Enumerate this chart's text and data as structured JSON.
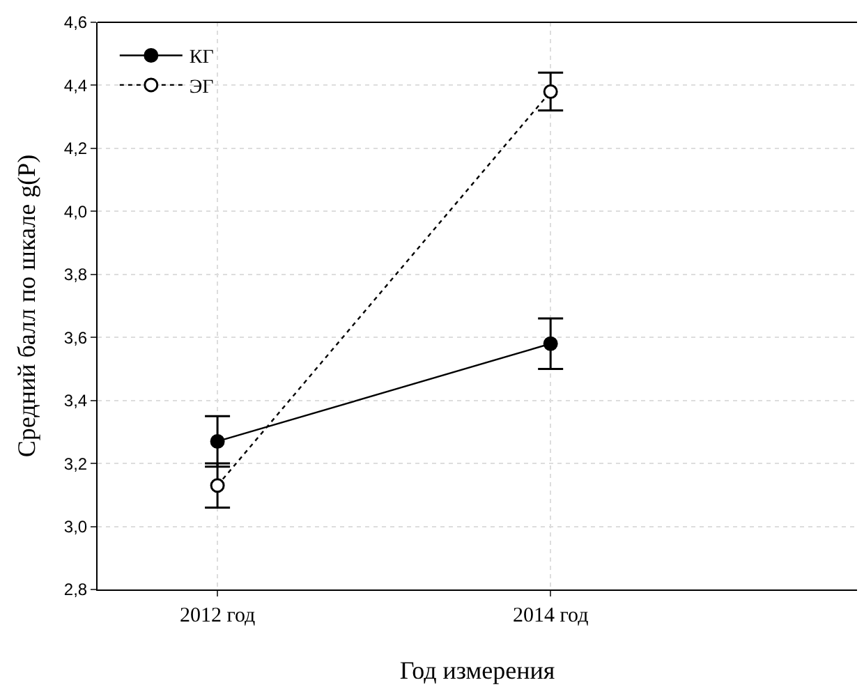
{
  "chart_data": {
    "type": "line",
    "xlabel": "Год измерения",
    "ylabel": "Средний балл по шкале g(P)",
    "categories": [
      "2012 год",
      "2014 год"
    ],
    "series": [
      {
        "name": "КГ",
        "color": "#000000",
        "values": [
          3.27,
          3.58
        ],
        "errors": [
          0.08,
          0.08
        ],
        "marker": "circle",
        "line_style": "solid"
      },
      {
        "name": "ЭГ",
        "color": "#000000",
        "values": [
          3.13,
          4.38
        ],
        "errors": [
          0.07,
          0.06
        ],
        "marker": "circle",
        "line_style": "dotted"
      }
    ],
    "ylim": [
      2.8,
      4.6
    ],
    "yticks": [
      {
        "value": 2.8,
        "label": "2,8"
      },
      {
        "value": 3.0,
        "label": "3,0"
      },
      {
        "value": 3.2,
        "label": "3,2"
      },
      {
        "value": 3.4,
        "label": "3,4"
      },
      {
        "value": 3.6,
        "label": "3,6"
      },
      {
        "value": 3.8,
        "label": "3,8"
      },
      {
        "value": 4.0,
        "label": "4,0"
      },
      {
        "value": 4.2,
        "label": "4,2"
      },
      {
        "value": 4.4,
        "label": "4,4"
      },
      {
        "value": 4.6,
        "label": "4,6"
      }
    ],
    "grid": true,
    "legend": "top left"
  }
}
